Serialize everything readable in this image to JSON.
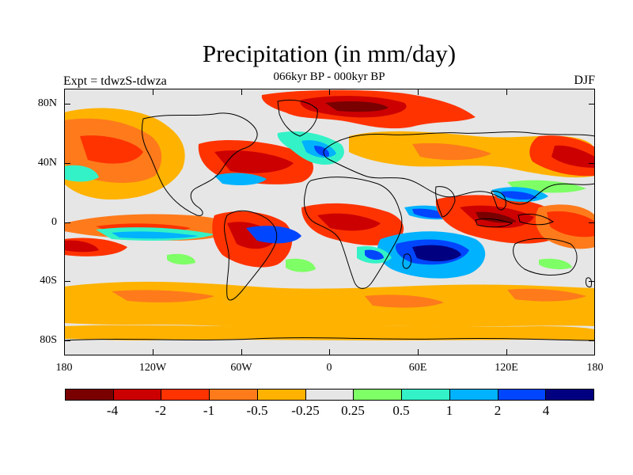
{
  "header": {
    "title": "Precipitation (in mm/day)",
    "subtitle": "066kyr BP - 000kyr BP",
    "left_label": "Expt = tdwzS-tdwza",
    "right_label": "DJF"
  },
  "axes": {
    "y_labels": [
      "80N",
      "40N",
      "0",
      "40S",
      "80S"
    ],
    "x_labels": [
      "180",
      "120W",
      "60W",
      "0",
      "60E",
      "120E",
      "180"
    ]
  },
  "colorbar": {
    "colors": [
      "#7a0000",
      "#cc0000",
      "#ff3300",
      "#ff7a1a",
      "#ffb300",
      "#e6e6e6",
      "#7fff66",
      "#33f2c8",
      "#00b2ff",
      "#0046ff",
      "#000080"
    ],
    "labels": [
      "-4",
      "-2",
      "-1",
      "-0.5",
      "-0.25",
      "0.25",
      "0.5",
      "1",
      "2",
      "4"
    ]
  }
}
